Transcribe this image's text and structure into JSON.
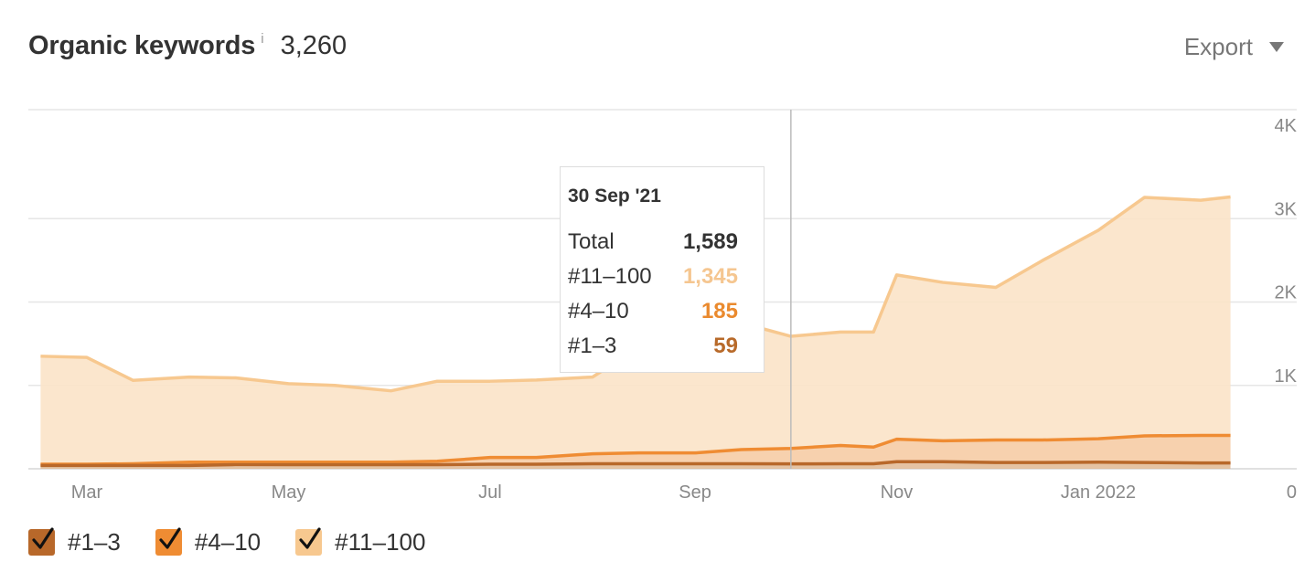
{
  "header": {
    "title": "Organic keywords",
    "info": "i",
    "count": "3,260",
    "export_label": "Export"
  },
  "tooltip": {
    "date": "30 Sep '21",
    "rows": [
      {
        "label": "Total",
        "value": "1,589",
        "color": "#333333"
      },
      {
        "label": "#11–100",
        "value": "1,345",
        "color": "#f5c690"
      },
      {
        "label": "#4–10",
        "value": "185",
        "color": "#ea8a2e"
      },
      {
        "label": "#1–3",
        "value": "59",
        "color": "#b86a2a"
      }
    ]
  },
  "legend": [
    {
      "label": "#1–3",
      "color": "#b8682a",
      "checked": true
    },
    {
      "label": "#4–10",
      "color": "#ef8c33",
      "checked": true
    },
    {
      "label": "#11–100",
      "color": "#f7c88f",
      "checked": true
    }
  ],
  "chart_data": {
    "type": "area",
    "stacked": true,
    "x": [
      "2021-02-15",
      "2021-03-01",
      "2021-03-15",
      "2021-04-01",
      "2021-04-15",
      "2021-05-01",
      "2021-05-15",
      "2021-06-01",
      "2021-06-15",
      "2021-07-01",
      "2021-07-15",
      "2021-08-01",
      "2021-08-15",
      "2021-09-01",
      "2021-09-15",
      "2021-09-30",
      "2021-10-15",
      "2021-10-25",
      "2021-11-01",
      "2021-11-15",
      "2021-12-01",
      "2021-12-15",
      "2022-01-01",
      "2022-01-15",
      "2022-02-01",
      "2022-02-10"
    ],
    "x_tick_labels": [
      "Mar",
      "May",
      "Jul",
      "Sep",
      "Nov",
      "Jan 2022"
    ],
    "y_tick_labels": [
      "0",
      "1K",
      "2K",
      "3K",
      "4K"
    ],
    "ylim": [
      0,
      4000
    ],
    "series": [
      {
        "name": "#1–3",
        "color": "#b8682a",
        "values": [
          40,
          40,
          40,
          40,
          50,
          50,
          50,
          50,
          50,
          55,
          55,
          60,
          60,
          60,
          60,
          59,
          60,
          60,
          85,
          85,
          75,
          75,
          80,
          75,
          70,
          70
        ]
      },
      {
        "name": "#4–10",
        "color": "#ef8c33",
        "values": [
          15,
          15,
          20,
          40,
          30,
          30,
          30,
          30,
          40,
          80,
          80,
          120,
          130,
          130,
          170,
          185,
          220,
          200,
          270,
          250,
          270,
          270,
          280,
          320,
          330,
          330
        ]
      },
      {
        "name": "#11–100",
        "color": "#f7c88f",
        "values": [
          1295,
          1280,
          1000,
          1020,
          1010,
          940,
          920,
          855,
          960,
          915,
          930,
          920,
          1270,
          1390,
          1520,
          1345,
          1360,
          1380,
          1970,
          1900,
          1830,
          2150,
          2500,
          2860,
          2820,
          2860
        ]
      }
    ],
    "hover_date": "2021-09-30",
    "grid": true
  }
}
